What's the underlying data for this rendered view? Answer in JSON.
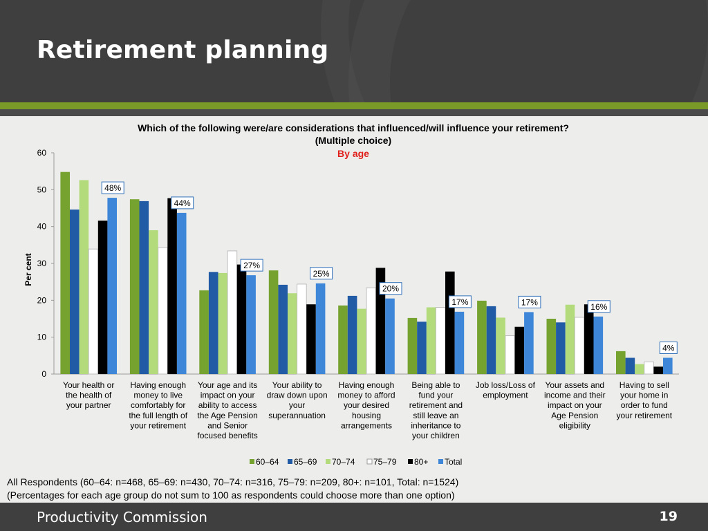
{
  "slide": {
    "title": "Retirement planning",
    "footer_left": "Productivity Commission",
    "page_number": "19",
    "footnote_line1": "All Respondents (60–64: n=468, 65–69: n=430, 70–74: n=316, 75–79: n=209, 80+: n=101, Total: n=1524)",
    "footnote_line2": "(Percentages for each age group do not sum to 100 as respondents could choose more than one option)"
  },
  "colors": {
    "header_bg": "#3f3f3f",
    "accent_green": "#7a9a27",
    "subtitle_red": "#e0201b"
  },
  "chart_data": {
    "type": "bar",
    "title_line1": "Which of the following were/are considerations that influenced/will influence your retirement?",
    "title_line2": "(Multiple choice)",
    "subtitle": "By age",
    "ylabel": "Per cent",
    "xlabel": "",
    "ylim": [
      0,
      60
    ],
    "yticks": [
      0,
      10,
      20,
      30,
      40,
      50,
      60
    ],
    "grid": false,
    "legend_position": "bottom",
    "categories": [
      [
        "Your health or",
        "the health of",
        "your partner"
      ],
      [
        "Having enough",
        "money to live",
        "comfortably for",
        "the full length of",
        "your retirement"
      ],
      [
        "Your age and its",
        "impact on your",
        "ability to access",
        "the Age Pension",
        "and Senior",
        "focused benefits"
      ],
      [
        "Your ability to",
        "draw down upon",
        "your",
        "superannuation"
      ],
      [
        "Having enough",
        "money to afford",
        "your desired",
        "housing",
        "arrangements"
      ],
      [
        "Being able to",
        "fund your",
        "retirement and",
        "still leave an",
        "inheritance to",
        "your children"
      ],
      [
        "Job loss/Loss of",
        "employment"
      ],
      [
        "Your assets and",
        "income and their",
        "impact on your",
        "Age Pension",
        "eligibility"
      ],
      [
        "Having to sell",
        "your home in",
        "order to fund",
        "your retirement"
      ]
    ],
    "series": [
      {
        "name": "60–64",
        "color": "#76a22f",
        "values": [
          54.8,
          47.4,
          22.7,
          28.1,
          18.6,
          15.2,
          19.9,
          15.0,
          6.2
        ]
      },
      {
        "name": "65–69",
        "color": "#215ba6",
        "values": [
          44.6,
          46.9,
          27.7,
          24.2,
          21.2,
          14.2,
          18.4,
          14.0,
          4.4
        ]
      },
      {
        "name": "70–74",
        "color": "#b3db7c",
        "values": [
          52.6,
          39.0,
          27.4,
          21.9,
          17.7,
          18.1,
          15.3,
          18.8,
          2.7
        ]
      },
      {
        "name": "75–79",
        "color": "#ffffff",
        "values": [
          33.9,
          34.3,
          33.4,
          24.4,
          23.4,
          18.1,
          10.4,
          15.4,
          3.3
        ]
      },
      {
        "name": "80+",
        "color": "#000000",
        "values": [
          41.6,
          47.7,
          29.7,
          18.9,
          28.8,
          27.8,
          12.8,
          18.9,
          2.0
        ]
      },
      {
        "name": "Total",
        "color": "#3d86d8",
        "values": [
          47.8,
          43.7,
          26.8,
          24.6,
          20.5,
          16.9,
          16.8,
          15.6,
          4.4
        ]
      }
    ],
    "data_labels": [
      "48%",
      "44%",
      "27%",
      "25%",
      "20%",
      "17%",
      "17%",
      "16%",
      "4%"
    ]
  }
}
